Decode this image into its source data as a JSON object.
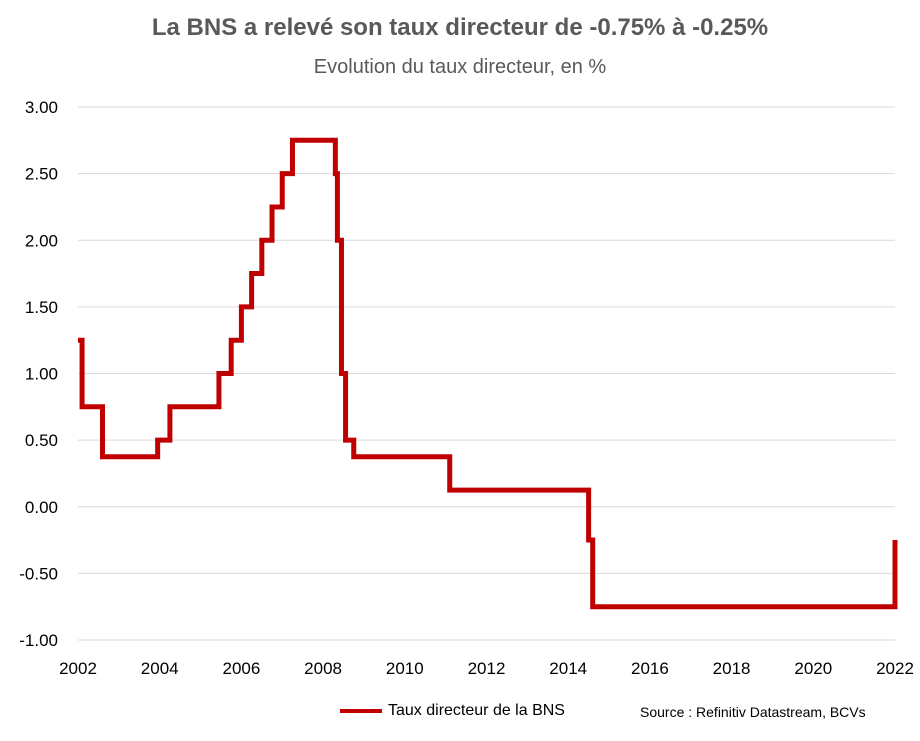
{
  "title": "La BNS a relevé son taux directeur de -0.75% à -0.25%",
  "subtitle": "Evolution du taux directeur, en %",
  "source": "Source : Refinitiv Datastream, BCVs",
  "colors": {
    "series": "#C00000",
    "grid": "#D9D9D9",
    "axis_text": "#000000",
    "title": "#595959"
  },
  "chart_data": {
    "type": "line",
    "title": "La BNS a relevé son taux directeur de -0.75% à -0.25%",
    "subtitle": "Evolution du taux directeur, en %",
    "xlabel": "",
    "ylabel": "",
    "xlim": [
      2002,
      2022
    ],
    "ylim": [
      -1.0,
      3.0
    ],
    "x_ticks": [
      "2002",
      "2004",
      "2006",
      "2008",
      "2010",
      "2012",
      "2014",
      "2016",
      "2018",
      "2020",
      "2022"
    ],
    "y_ticks": [
      "3.00",
      "2.50",
      "2.00",
      "1.50",
      "1.00",
      "0.50",
      "0.00",
      "-0.50",
      "-1.00"
    ],
    "grid": true,
    "legend_position": "bottom",
    "step": true,
    "series": [
      {
        "name": "Taux directeur de la BNS",
        "color": "#C00000",
        "x": [
          2002.0,
          2002.1,
          2002.6,
          2003.95,
          2004.25,
          2005.45,
          2005.75,
          2006.0,
          2006.25,
          2006.5,
          2006.75,
          2007.0,
          2007.25,
          2008.3,
          2008.35,
          2008.45,
          2008.55,
          2008.75,
          2011.1,
          2014.5,
          2014.6,
          2022.0
        ],
        "y": [
          1.25,
          0.75,
          0.375,
          0.5,
          0.75,
          1.0,
          1.25,
          1.5,
          1.75,
          2.0,
          2.25,
          2.5,
          2.75,
          2.5,
          2.0,
          1.0,
          0.5,
          0.375,
          0.125,
          -0.25,
          -0.75,
          -0.25
        ]
      }
    ]
  }
}
